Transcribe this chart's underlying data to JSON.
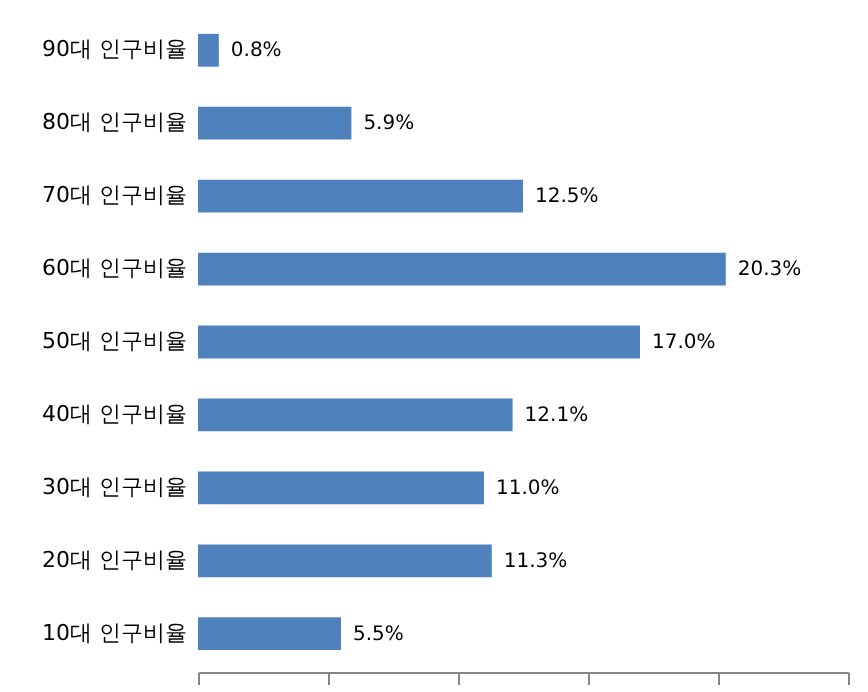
{
  "chart_data": {
    "type": "bar",
    "orientation": "horizontal",
    "categories": [
      "90대 인구비율",
      "80대 인구비율",
      "70대 인구비율",
      "60대 인구비율",
      "50대 인구비율",
      "40대 인구비율",
      "30대 인구비율",
      "20대 인구비율",
      "10대 인구비율"
    ],
    "values": [
      0.8,
      5.9,
      12.5,
      20.3,
      17.0,
      12.1,
      11.0,
      11.3,
      5.5
    ],
    "value_labels": [
      "0.8%",
      "5.9%",
      "12.5%",
      "20.3%",
      "17.0%",
      "12.1%",
      "11.0%",
      "11.3%",
      "5.5%"
    ],
    "color": "#4f81bd",
    "xlim": [
      0,
      25
    ],
    "xticks": [
      {
        "value": 0,
        "label": null
      },
      {
        "value": 5,
        "label": null
      },
      {
        "value": 10,
        "label": null
      },
      {
        "value": 15,
        "label": null
      },
      {
        "value": 20,
        "label": null
      },
      {
        "value": 25,
        "label": null
      }
    ],
    "tick_labels": "y",
    "grid": false
  }
}
